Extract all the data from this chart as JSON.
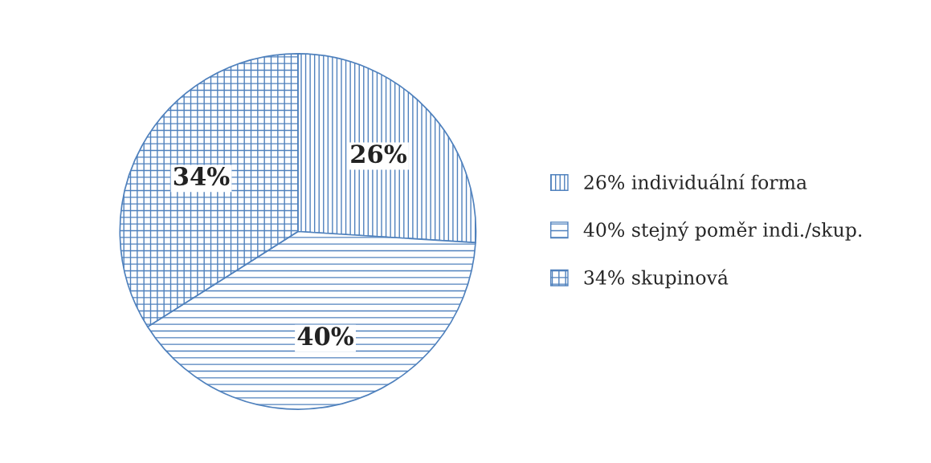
{
  "chart_data": {
    "type": "pie",
    "categories": [
      "26% individuální forma",
      "40% stejný poměr indi./skup.",
      "34% skupinová"
    ],
    "values": [
      26,
      40,
      34
    ],
    "colors": [
      "#4f81bd",
      "#4f81bd",
      "#4f81bd"
    ],
    "value_labels": [
      "26%",
      "40%",
      "34%"
    ],
    "legend": "right"
  }
}
